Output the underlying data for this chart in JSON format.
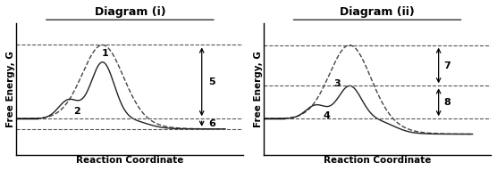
{
  "title_i": "Diagram (i)",
  "title_ii": "Diagram (ii)",
  "xlabel": "Reaction Coordinate",
  "ylabel": "Free Energy, G",
  "bg_color": "#ffffff",
  "baseline": 0.45,
  "peak_dashed": 1.17,
  "product_i": 0.35,
  "peak_solid_ii": 0.77,
  "product_ii": 0.3,
  "label_1": "1",
  "label_2": "2",
  "label_3": "3",
  "label_4": "4",
  "label_5": "5",
  "label_6": "6",
  "label_7": "7",
  "label_8": "8"
}
